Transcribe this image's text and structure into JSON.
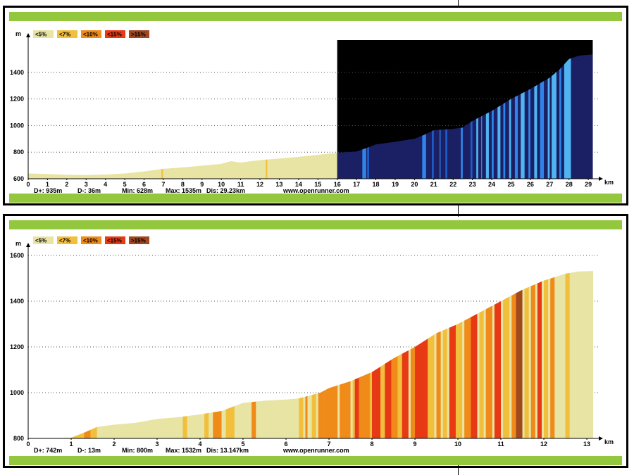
{
  "colors": {
    "band": "#93c83e",
    "legend": [
      "#e8e4a3",
      "#f2bf3c",
      "#f08a18",
      "#e73a14",
      "#a1481f"
    ],
    "dark_bg": "#000000",
    "dark_fill": "#1b1f63",
    "blues": [
      "#1f5cc6",
      "#2e84e8",
      "#4fb4f0"
    ]
  },
  "legend": [
    "<5%",
    "<7%",
    "<10%",
    "<15%",
    ">15%"
  ],
  "watermark": "www.openrunner.com",
  "chart_data": [
    {
      "type": "area",
      "unit_y": "m",
      "unit_x": "km",
      "ylim": [
        600,
        1600
      ],
      "xlim": [
        0,
        29.23
      ],
      "y_ticks": [
        600,
        800,
        1000,
        1200,
        1400
      ],
      "x_ticks": [
        0,
        1,
        2,
        3,
        4,
        5,
        6,
        7,
        8,
        9,
        10,
        11,
        12,
        13,
        14,
        15,
        16,
        17,
        18,
        19,
        20,
        21,
        22,
        23,
        24,
        25,
        26,
        27,
        28,
        29
      ],
      "highlight_from_km": 16,
      "profile": [
        [
          0,
          640
        ],
        [
          1,
          636
        ],
        [
          2,
          630
        ],
        [
          3,
          628
        ],
        [
          4,
          632
        ],
        [
          5,
          640
        ],
        [
          6,
          655
        ],
        [
          7,
          675
        ],
        [
          8,
          685
        ],
        [
          9,
          698
        ],
        [
          10,
          712
        ],
        [
          10.5,
          732
        ],
        [
          11,
          722
        ],
        [
          12,
          740
        ],
        [
          13,
          752
        ],
        [
          14,
          765
        ],
        [
          15,
          780
        ],
        [
          16,
          795
        ],
        [
          17,
          805
        ],
        [
          17.5,
          830
        ],
        [
          18,
          858
        ],
        [
          19,
          878
        ],
        [
          19.5,
          890
        ],
        [
          20,
          900
        ],
        [
          20.5,
          930
        ],
        [
          21,
          965
        ],
        [
          22,
          975
        ],
        [
          22.5,
          985
        ],
        [
          23,
          1035
        ],
        [
          24,
          1110
        ],
        [
          25,
          1200
        ],
        [
          26,
          1275
        ],
        [
          27,
          1360
        ],
        [
          27.5,
          1420
        ],
        [
          28,
          1500
        ],
        [
          28.5,
          1525
        ],
        [
          29.23,
          1535
        ]
      ],
      "stats": {
        "dplus": "D+: 935m",
        "dminus": "D-: 36m",
        "min": "Min: 628m",
        "max": "Max: 1535m",
        "dist": "Dis: 29.23km"
      },
      "steep_km": [
        6.9,
        12.3
      ],
      "blue_bars": [
        [
          17.3,
          17.5,
          1
        ],
        [
          17.55,
          17.65,
          0
        ],
        [
          20.4,
          20.6,
          1
        ],
        [
          20.9,
          21.0,
          0
        ],
        [
          21.3,
          21.35,
          1
        ],
        [
          21.6,
          21.7,
          0
        ],
        [
          22.4,
          22.5,
          1
        ],
        [
          22.9,
          23.0,
          0
        ],
        [
          23.2,
          23.3,
          2
        ],
        [
          23.45,
          23.5,
          1
        ],
        [
          23.7,
          23.85,
          2
        ],
        [
          24.0,
          24.1,
          1
        ],
        [
          24.3,
          24.45,
          2
        ],
        [
          24.6,
          24.7,
          1
        ],
        [
          24.9,
          25.0,
          2
        ],
        [
          25.2,
          25.35,
          1
        ],
        [
          25.5,
          25.7,
          2
        ],
        [
          25.9,
          26.0,
          1
        ],
        [
          26.2,
          26.35,
          2
        ],
        [
          26.5,
          26.7,
          1
        ],
        [
          26.9,
          27.0,
          2
        ],
        [
          27.1,
          27.35,
          2
        ],
        [
          27.5,
          27.6,
          1
        ],
        [
          27.75,
          28.1,
          2
        ]
      ]
    },
    {
      "type": "area",
      "unit_y": "m",
      "unit_x": "km",
      "ylim": [
        800,
        1600
      ],
      "xlim": [
        0,
        13.147
      ],
      "y_ticks": [
        800,
        1000,
        1200,
        1400,
        1600
      ],
      "x_ticks": [
        0,
        1,
        2,
        3,
        4,
        5,
        6,
        7,
        8,
        9,
        10,
        11,
        12,
        13
      ],
      "profile": [
        [
          0,
          800
        ],
        [
          0.5,
          800
        ],
        [
          1,
          803
        ],
        [
          1.3,
          825
        ],
        [
          1.6,
          850
        ],
        [
          2,
          860
        ],
        [
          2.5,
          868
        ],
        [
          3,
          885
        ],
        [
          3.5,
          893
        ],
        [
          4,
          905
        ],
        [
          4.5,
          920
        ],
        [
          5,
          955
        ],
        [
          5.5,
          965
        ],
        [
          6,
          970
        ],
        [
          6.3,
          975
        ],
        [
          6.8,
          1000
        ],
        [
          7,
          1020
        ],
        [
          7.5,
          1050
        ],
        [
          8,
          1090
        ],
        [
          8.5,
          1150
        ],
        [
          9,
          1200
        ],
        [
          9.5,
          1260
        ],
        [
          10,
          1300
        ],
        [
          10.5,
          1350
        ],
        [
          11,
          1400
        ],
        [
          11.5,
          1450
        ],
        [
          12,
          1490
        ],
        [
          12.5,
          1520
        ],
        [
          12.8,
          1530
        ],
        [
          13.147,
          1532
        ]
      ],
      "stats": {
        "dplus": "D+: 742m",
        "dminus": "D-: 13m",
        "min": "Min: 800m",
        "max": "Max: 1532m",
        "dist": "Dis: 13.147km"
      },
      "segments": [
        [
          1.0,
          1.3,
          1
        ],
        [
          1.3,
          1.45,
          2
        ],
        [
          1.45,
          1.6,
          1
        ],
        [
          3.6,
          3.7,
          1
        ],
        [
          4.1,
          4.2,
          1
        ],
        [
          4.3,
          4.5,
          2
        ],
        [
          4.6,
          4.8,
          1
        ],
        [
          5.2,
          5.3,
          2
        ],
        [
          6.3,
          6.4,
          1
        ],
        [
          6.45,
          6.5,
          2
        ],
        [
          6.6,
          6.7,
          1
        ],
        [
          6.75,
          6.9,
          2
        ],
        [
          6.9,
          7.2,
          2
        ],
        [
          7.25,
          7.5,
          2
        ],
        [
          7.55,
          7.6,
          1
        ],
        [
          7.6,
          7.7,
          3
        ],
        [
          7.7,
          7.95,
          2
        ],
        [
          7.95,
          8.0,
          1
        ],
        [
          8.0,
          8.2,
          3
        ],
        [
          8.2,
          8.3,
          1
        ],
        [
          8.3,
          8.45,
          3
        ],
        [
          8.45,
          8.6,
          2
        ],
        [
          8.6,
          8.7,
          1
        ],
        [
          8.7,
          8.85,
          3
        ],
        [
          8.9,
          9.0,
          2
        ],
        [
          9.0,
          9.3,
          3
        ],
        [
          9.3,
          9.45,
          1
        ],
        [
          9.5,
          9.6,
          2
        ],
        [
          9.65,
          9.75,
          1
        ],
        [
          9.8,
          9.95,
          3
        ],
        [
          9.95,
          10.1,
          1
        ],
        [
          10.15,
          10.3,
          2
        ],
        [
          10.3,
          10.45,
          3
        ],
        [
          10.5,
          10.6,
          1
        ],
        [
          10.65,
          10.8,
          2
        ],
        [
          10.85,
          11.0,
          3
        ],
        [
          11.05,
          11.2,
          1
        ],
        [
          11.25,
          11.35,
          2
        ],
        [
          11.35,
          11.5,
          4
        ],
        [
          11.55,
          11.65,
          1
        ],
        [
          11.7,
          11.8,
          2
        ],
        [
          11.85,
          11.95,
          3
        ],
        [
          12.0,
          12.1,
          1
        ],
        [
          12.15,
          12.25,
          2
        ],
        [
          12.5,
          12.6,
          1
        ]
      ]
    }
  ]
}
